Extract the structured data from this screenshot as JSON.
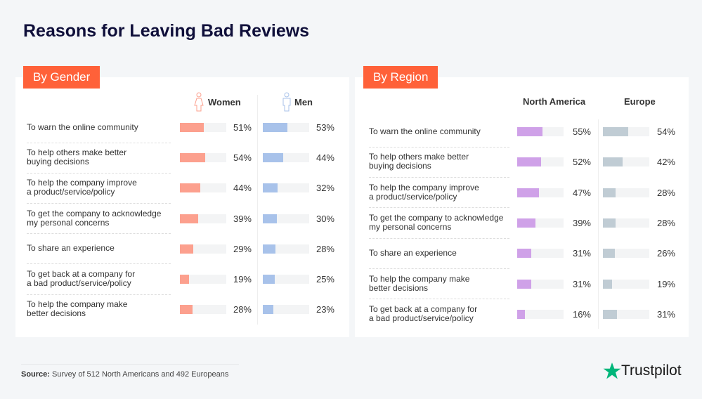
{
  "title": "Reasons for Leaving Bad Reviews",
  "source_label": "Source:",
  "source_text": "Survey of 512 North Americans and 492 Europeans",
  "logo_text": "Trustpilot",
  "chart_data": [
    {
      "type": "bar",
      "title": "By Gender",
      "categories": [
        "To warn the online community",
        "To help others make better buying decisions",
        "To help the company improve a product/service/policy",
        "To get the company to acknowledge my personal concerns",
        "To share an experience",
        "To get back at a company for a bad product/service/policy",
        "To help the company make better decisions"
      ],
      "category_lines": [
        [
          "To warn the online community"
        ],
        [
          "To help others make better",
          "buying decisions"
        ],
        [
          "To help the company improve",
          "a product/service/policy"
        ],
        [
          "To get the company to acknowledge",
          "my personal concerns"
        ],
        [
          "To share an experience"
        ],
        [
          "To get back at a company for",
          "a bad product/service/policy"
        ],
        [
          "To help the company make",
          "better decisions"
        ]
      ],
      "series": [
        {
          "name": "Women",
          "icon": "woman-icon",
          "color": "#fca08e",
          "values": [
            51,
            54,
            44,
            39,
            29,
            19,
            28
          ],
          "labels": [
            "51%",
            "54%",
            "44%",
            "39%",
            "29%",
            "19%",
            "28%"
          ]
        },
        {
          "name": "Men",
          "icon": "man-icon",
          "color": "#a8c2ea",
          "values": [
            53,
            44,
            32,
            30,
            28,
            25,
            23
          ],
          "labels": [
            "53%",
            "44%",
            "32%",
            "30%",
            "28%",
            "25%",
            "23%"
          ]
        }
      ],
      "xlim": [
        0,
        100
      ]
    },
    {
      "type": "bar",
      "title": "By Region",
      "categories": [
        "To warn the online community",
        "To help others make better buying decisions",
        "To help the company improve a product/service/policy",
        "To get the company to acknowledge my personal concerns",
        "To share an experience",
        "To help the company make better decisions",
        "To get back at a company for a bad product/service/policy"
      ],
      "category_lines": [
        [
          "To warn the online community"
        ],
        [
          "To help others make better",
          "buying decisions"
        ],
        [
          "To help the company improve",
          "a product/service/policy"
        ],
        [
          "To get the company to acknowledge",
          "my personal concerns"
        ],
        [
          "To share an experience"
        ],
        [
          "To help the company make",
          "better decisions"
        ],
        [
          "To get back at a company for",
          "a bad product/service/policy"
        ]
      ],
      "series": [
        {
          "name": "North America",
          "color": "#cfa1e8",
          "values": [
            55,
            52,
            47,
            39,
            31,
            31,
            16
          ],
          "labels": [
            "55%",
            "52%",
            "47%",
            "39%",
            "31%",
            "31%",
            "16%"
          ]
        },
        {
          "name": "Europe",
          "color": "#c0ccd4",
          "values": [
            54,
            42,
            28,
            28,
            26,
            19,
            31
          ],
          "labels": [
            "54%",
            "42%",
            "28%",
            "28%",
            "26%",
            "19%",
            "31%"
          ]
        }
      ],
      "xlim": [
        0,
        100
      ]
    }
  ],
  "colors": {
    "tag": "#ff6139",
    "title": "#0f0f3a",
    "star": "#00b67a"
  }
}
